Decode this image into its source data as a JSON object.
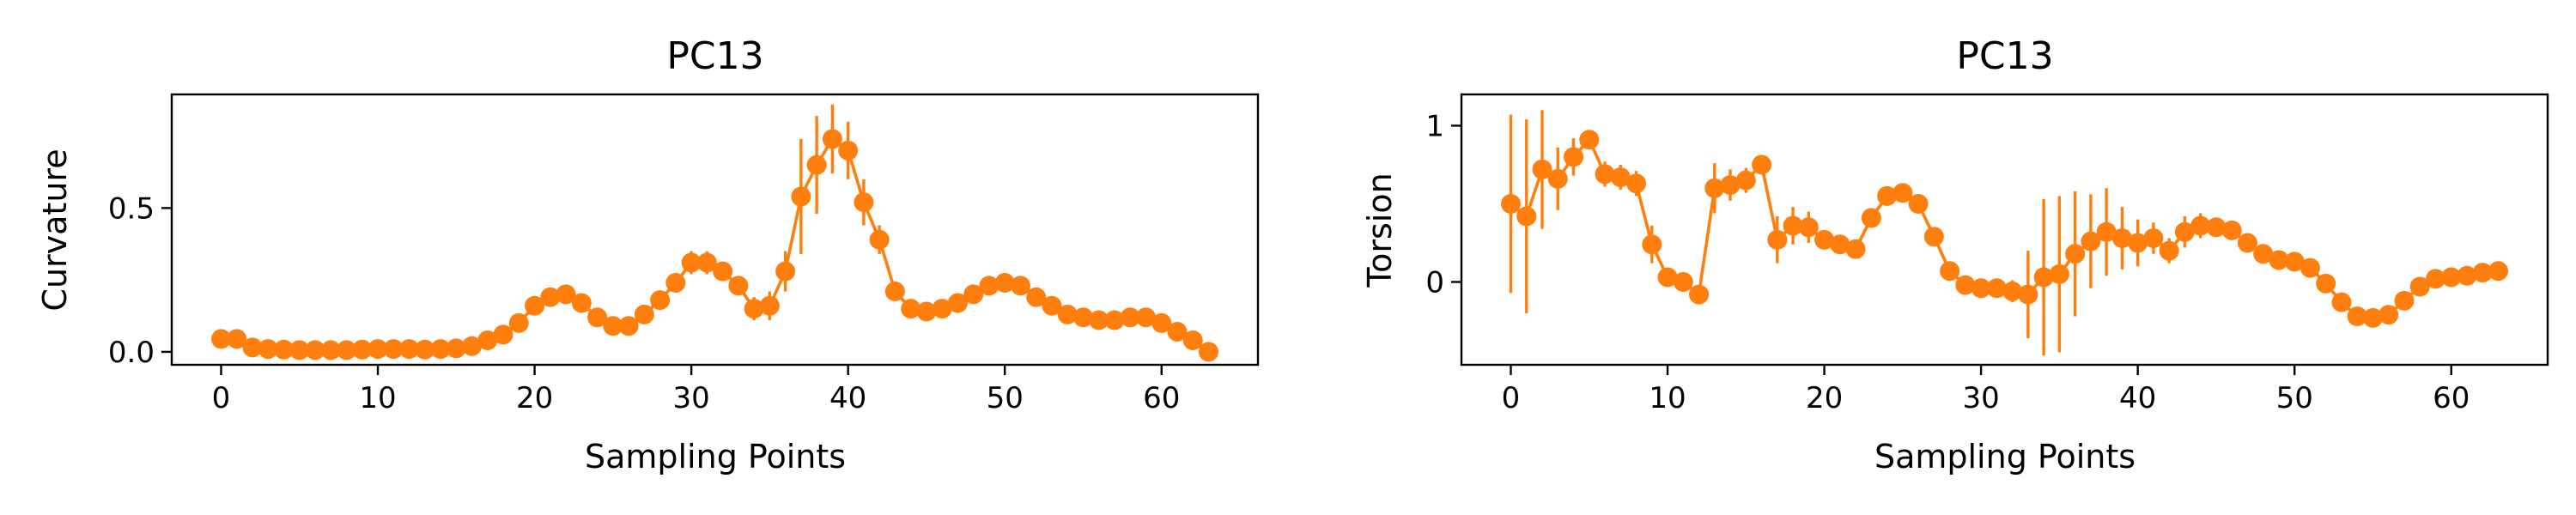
{
  "colors": {
    "series": "#ff7f0e",
    "axis": "#000000",
    "background": "#ffffff"
  },
  "chart_data": [
    {
      "type": "line",
      "title": "PC13",
      "xlabel": "Sampling Points",
      "ylabel": "Curvature",
      "xlim": [
        -3.15,
        66.15
      ],
      "ylim": [
        -0.045,
        0.895
      ],
      "xticks": [
        0,
        10,
        20,
        30,
        40,
        50,
        60
      ],
      "xtick_labels": [
        "0",
        "10",
        "20",
        "30",
        "40",
        "50",
        "60"
      ],
      "yticks": [
        0.0,
        0.5
      ],
      "ytick_labels": [
        "0.0",
        "0.5"
      ],
      "grid": false,
      "legend": "none",
      "series": [
        {
          "x": [
            0,
            1,
            2,
            3,
            4,
            5,
            6,
            7,
            8,
            9,
            10,
            11,
            12,
            13,
            14,
            15,
            16,
            17,
            18,
            19,
            20,
            21,
            22,
            23,
            24,
            25,
            26,
            27,
            28,
            29,
            30,
            31,
            32,
            33,
            34,
            35,
            36,
            37,
            38,
            39,
            40,
            41,
            42,
            43,
            44,
            45,
            46,
            47,
            48,
            49,
            50,
            51,
            52,
            53,
            54,
            55,
            56,
            57,
            58,
            59,
            60,
            61,
            62,
            63
          ],
          "y": [
            0.045,
            0.045,
            0.015,
            0.01,
            0.008,
            0.006,
            0.006,
            0.006,
            0.006,
            0.008,
            0.01,
            0.01,
            0.01,
            0.008,
            0.01,
            0.012,
            0.02,
            0.04,
            0.06,
            0.1,
            0.16,
            0.19,
            0.2,
            0.17,
            0.12,
            0.09,
            0.09,
            0.13,
            0.18,
            0.24,
            0.31,
            0.31,
            0.28,
            0.23,
            0.15,
            0.16,
            0.28,
            0.54,
            0.65,
            0.74,
            0.7,
            0.52,
            0.39,
            0.21,
            0.15,
            0.14,
            0.15,
            0.17,
            0.2,
            0.23,
            0.24,
            0.23,
            0.19,
            0.16,
            0.13,
            0.12,
            0.11,
            0.11,
            0.12,
            0.12,
            0.1,
            0.07,
            0.04,
            0.0
          ],
          "err": [
            0.01,
            0.01,
            0.005,
            0.005,
            0.005,
            0.005,
            0.005,
            0.005,
            0.005,
            0.005,
            0.005,
            0.005,
            0.005,
            0.005,
            0.005,
            0.005,
            0.008,
            0.01,
            0.015,
            0.02,
            0.025,
            0.03,
            0.03,
            0.025,
            0.02,
            0.015,
            0.015,
            0.02,
            0.025,
            0.03,
            0.04,
            0.04,
            0.03,
            0.03,
            0.04,
            0.05,
            0.07,
            0.2,
            0.17,
            0.12,
            0.1,
            0.08,
            0.05,
            0.03,
            0.02,
            0.02,
            0.02,
            0.02,
            0.02,
            0.025,
            0.025,
            0.02,
            0.02,
            0.015,
            0.015,
            0.01,
            0.01,
            0.01,
            0.01,
            0.01,
            0.01,
            0.01,
            0.01,
            0.005
          ]
        }
      ]
    },
    {
      "type": "line",
      "title": "PC13",
      "xlabel": "Sampling Points",
      "ylabel": "Torsion",
      "xlim": [
        -3.15,
        66.15
      ],
      "ylim": [
        -0.53,
        1.2
      ],
      "xticks": [
        0,
        10,
        20,
        30,
        40,
        50,
        60
      ],
      "xtick_labels": [
        "0",
        "10",
        "20",
        "30",
        "40",
        "50",
        "60"
      ],
      "yticks": [
        0,
        1
      ],
      "ytick_labels": [
        "0",
        "1"
      ],
      "grid": false,
      "legend": "none",
      "series": [
        {
          "x": [
            0,
            1,
            2,
            3,
            4,
            5,
            6,
            7,
            8,
            9,
            10,
            11,
            12,
            13,
            14,
            15,
            16,
            17,
            18,
            19,
            20,
            21,
            22,
            23,
            24,
            25,
            26,
            27,
            28,
            29,
            30,
            31,
            32,
            33,
            34,
            35,
            36,
            37,
            38,
            39,
            40,
            41,
            42,
            43,
            44,
            45,
            46,
            47,
            48,
            49,
            50,
            51,
            52,
            53,
            54,
            55,
            56,
            57,
            58,
            59,
            60,
            61,
            62,
            63
          ],
          "y": [
            0.5,
            0.42,
            0.72,
            0.66,
            0.8,
            0.91,
            0.69,
            0.67,
            0.63,
            0.24,
            0.03,
            0.0,
            -0.08,
            0.6,
            0.62,
            0.65,
            0.75,
            0.27,
            0.36,
            0.35,
            0.27,
            0.24,
            0.21,
            0.41,
            0.55,
            0.57,
            0.5,
            0.29,
            0.07,
            -0.02,
            -0.04,
            -0.04,
            -0.06,
            -0.08,
            0.03,
            0.05,
            0.18,
            0.26,
            0.32,
            0.28,
            0.25,
            0.28,
            0.2,
            0.32,
            0.36,
            0.35,
            0.33,
            0.25,
            0.18,
            0.14,
            0.13,
            0.09,
            -0.01,
            -0.13,
            -0.22,
            -0.23,
            -0.21,
            -0.12,
            -0.03,
            0.02,
            0.03,
            0.04,
            0.06,
            0.07
          ],
          "err": [
            0.57,
            0.62,
            0.38,
            0.2,
            0.12,
            0.06,
            0.08,
            0.08,
            0.08,
            0.12,
            0.06,
            0.06,
            0.05,
            0.16,
            0.1,
            0.08,
            0.05,
            0.15,
            0.12,
            0.1,
            0.06,
            0.05,
            0.05,
            0.06,
            0.06,
            0.05,
            0.05,
            0.06,
            0.06,
            0.04,
            0.05,
            0.05,
            0.07,
            0.28,
            0.5,
            0.5,
            0.4,
            0.3,
            0.28,
            0.2,
            0.15,
            0.1,
            0.08,
            0.1,
            0.08,
            0.06,
            0.05,
            0.05,
            0.04,
            0.04,
            0.04,
            0.04,
            0.04,
            0.05,
            0.05,
            0.04,
            0.04,
            0.05,
            0.04,
            0.04,
            0.03,
            0.03,
            0.03,
            0.03
          ]
        }
      ]
    }
  ]
}
